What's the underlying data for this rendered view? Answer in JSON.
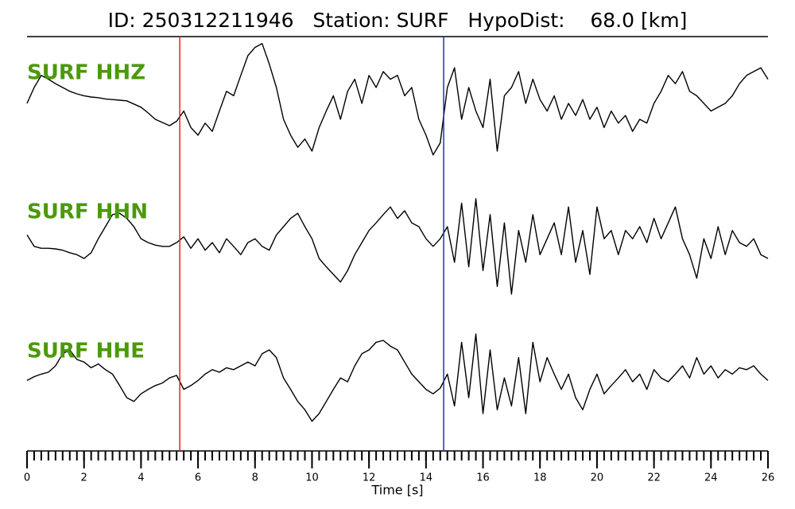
{
  "chart_data": {
    "type": "waveform",
    "title": "ID: 250312211946   Station: SURF   HypoDist:    68.0 [km]",
    "xlabel": "Time [s]",
    "xlim": [
      0,
      26
    ],
    "xticks": [
      0,
      2,
      4,
      6,
      8,
      10,
      12,
      14,
      16,
      18,
      20,
      22,
      24,
      26
    ],
    "xminorticks": [
      0,
      0.25,
      0.5,
      0.75,
      1,
      1.25,
      1.5,
      1.75,
      2,
      2.25,
      2.5,
      2.75,
      3,
      3.25,
      3.5,
      3.75,
      4,
      4.25,
      4.5,
      4.75,
      5,
      5.25,
      5.5,
      5.75,
      6,
      6.25,
      6.5,
      6.75,
      7,
      7.25,
      7.5,
      7.75,
      8,
      8.25,
      8.5,
      8.75,
      9,
      9.25,
      9.5,
      9.75,
      10,
      10.25,
      10.5,
      10.75,
      11,
      11.25,
      11.5,
      11.75,
      12,
      12.25,
      12.5,
      12.75,
      13,
      13.25,
      13.5,
      13.75,
      14,
      14.25,
      14.5,
      14.75,
      15,
      15.25,
      15.5,
      15.75,
      16,
      16.25,
      16.5,
      16.75,
      17,
      17.25,
      17.5,
      17.75,
      18,
      18.25,
      18.5,
      18.75,
      19,
      19.25,
      19.5,
      19.75,
      20,
      20.25,
      20.5,
      20.75,
      21,
      21.25,
      21.5,
      21.75,
      22,
      22.25,
      22.5,
      22.75,
      23,
      23.25,
      23.5,
      23.75,
      24,
      24.25,
      24.5,
      24.75,
      25,
      25.25,
      25.5,
      25.75,
      26
    ],
    "ylim": [
      -1,
      1
    ],
    "label_color": "#4a9a0a",
    "x": [
      0,
      0.25,
      0.5,
      0.75,
      1,
      1.25,
      1.5,
      1.75,
      2,
      2.25,
      2.5,
      2.75,
      3,
      3.25,
      3.5,
      3.75,
      4,
      4.25,
      4.5,
      4.75,
      5,
      5.25,
      5.5,
      5.75,
      6,
      6.25,
      6.5,
      6.75,
      7,
      7.25,
      7.5,
      7.75,
      8,
      8.25,
      8.5,
      8.75,
      9,
      9.25,
      9.5,
      9.75,
      10,
      10.25,
      10.5,
      10.75,
      11,
      11.25,
      11.5,
      11.75,
      12,
      12.25,
      12.5,
      12.75,
      13,
      13.25,
      13.5,
      13.75,
      14,
      14.25,
      14.5,
      14.75,
      15,
      15.25,
      15.5,
      15.75,
      16,
      16.25,
      16.5,
      16.75,
      17,
      17.25,
      17.5,
      17.75,
      18,
      18.25,
      18.5,
      18.75,
      19,
      19.25,
      19.5,
      19.75,
      20,
      20.25,
      20.5,
      20.75,
      21,
      21.25,
      21.5,
      21.75,
      22,
      22.25,
      22.5,
      22.75,
      23,
      23.25,
      23.5,
      23.75,
      24,
      24.25,
      24.5,
      24.75,
      25,
      25.25,
      25.5,
      25.75,
      26
    ],
    "series": [
      {
        "name": "SURF HHZ",
        "color": "#000000",
        "values": [
          0,
          0.25,
          0.44,
          0.38,
          0.31,
          0.25,
          0.19,
          0.15,
          0.12,
          0.1,
          0.09,
          0.07,
          0.06,
          0.05,
          0.04,
          -0.01,
          -0.06,
          -0.15,
          -0.25,
          -0.3,
          -0.35,
          -0.28,
          -0.12,
          -0.38,
          -0.5,
          -0.31,
          -0.44,
          -0.12,
          0.19,
          0.12,
          0.44,
          0.75,
          0.88,
          0.94,
          0.62,
          0.25,
          -0.25,
          -0.5,
          -0.69,
          -0.56,
          -0.75,
          -0.38,
          -0.12,
          0.12,
          -0.25,
          0.19,
          0.38,
          0,
          0.44,
          0.25,
          0.5,
          0.38,
          0.44,
          0.12,
          0.25,
          -0.25,
          -0.5,
          -0.81,
          -0.62,
          0.25,
          0.56,
          -0.25,
          0.25,
          -0.12,
          -0.38,
          0.38,
          -0.75,
          0.12,
          0.25,
          0.5,
          0,
          0.38,
          0.06,
          -0.12,
          0.12,
          -0.25,
          0,
          -0.19,
          0.06,
          -0.25,
          -0.06,
          -0.38,
          -0.12,
          -0.31,
          -0.19,
          -0.44,
          -0.25,
          -0.31,
          0,
          0.19,
          0.44,
          0.31,
          0.5,
          0.19,
          0.12,
          0,
          -0.12,
          -0.06,
          0,
          0.12,
          0.31,
          0.44,
          0.5,
          0.56,
          0.38
        ]
      },
      {
        "name": "SURF HHN",
        "color": "#000000",
        "values": [
          0.12,
          -0.06,
          -0.09,
          -0.09,
          -0.1,
          -0.12,
          -0.16,
          -0.19,
          -0.25,
          -0.16,
          0.06,
          0.25,
          0.44,
          0.46,
          0.38,
          0.25,
          0.06,
          0,
          -0.04,
          -0.06,
          -0.06,
          0,
          0.09,
          -0.09,
          0.06,
          -0.12,
          0,
          -0.16,
          0.06,
          -0.06,
          -0.19,
          0,
          0.06,
          -0.06,
          -0.12,
          0.12,
          0.25,
          0.38,
          0.46,
          0.25,
          0.06,
          -0.25,
          -0.38,
          -0.5,
          -0.62,
          -0.44,
          -0.19,
          0,
          0.19,
          0.31,
          0.44,
          0.56,
          0.38,
          0.5,
          0.31,
          0.25,
          0.06,
          -0.06,
          0.06,
          0.25,
          -0.31,
          0.62,
          -0.38,
          0.69,
          -0.44,
          0.44,
          -0.69,
          0.31,
          -0.81,
          0.19,
          -0.31,
          0.44,
          -0.19,
          0.06,
          0.31,
          -0.19,
          0.56,
          -0.31,
          0.19,
          -0.5,
          0.56,
          0.06,
          0.19,
          -0.19,
          0.19,
          0.06,
          0.25,
          0,
          0.38,
          0.06,
          0.31,
          0.56,
          0.06,
          -0.19,
          -0.56,
          0.06,
          -0.25,
          0.25,
          -0.19,
          0.19,
          0,
          -0.06,
          0.06,
          -0.19,
          -0.25
        ]
      },
      {
        "name": "SURF HHE",
        "color": "#000000",
        "values": [
          0.02,
          0.08,
          0.12,
          0.15,
          0.25,
          0.44,
          0.5,
          0.35,
          0.31,
          0.22,
          0.28,
          0.19,
          0.12,
          -0.06,
          -0.25,
          -0.31,
          -0.19,
          -0.12,
          -0.06,
          -0.02,
          0.06,
          0.1,
          -0.12,
          -0.06,
          0.02,
          0.12,
          0.19,
          0.15,
          0.22,
          0.19,
          0.25,
          0.31,
          0.25,
          0.44,
          0.5,
          0.38,
          0.06,
          -0.12,
          -0.31,
          -0.44,
          -0.62,
          -0.5,
          -0.31,
          -0.12,
          0.06,
          0,
          0.25,
          0.44,
          0.5,
          0.62,
          0.65,
          0.56,
          0.5,
          0.31,
          0.12,
          0,
          -0.12,
          -0.19,
          -0.1,
          0.12,
          -0.38,
          0.62,
          -0.25,
          0.75,
          -0.5,
          0.5,
          -0.44,
          0.06,
          -0.38,
          0.38,
          -0.5,
          0.62,
          0,
          0.38,
          0.12,
          -0.12,
          0.12,
          -0.25,
          -0.44,
          -0.12,
          0.12,
          -0.19,
          -0.06,
          0.06,
          0.19,
          0,
          0.12,
          -0.12,
          0.19,
          0.06,
          0,
          0.12,
          0.25,
          0.06,
          0.38,
          0.12,
          0.25,
          0.06,
          0.19,
          0.12,
          0.22,
          0.19,
          0.25,
          0.12,
          0.02
        ]
      }
    ],
    "markers": [
      {
        "x": 5.36,
        "color": "#e02020"
      },
      {
        "x": 14.62,
        "color": "#2030b0"
      }
    ]
  }
}
